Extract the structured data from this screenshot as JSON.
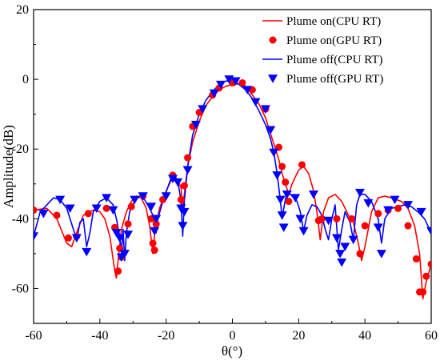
{
  "chart_data": {
    "type": "line",
    "xlabel": "θ(°)",
    "ylabel": "Amplitude(dB)",
    "xlim": [
      -60,
      60
    ],
    "ylim": [
      -70,
      20
    ],
    "x_ticks": [
      -60,
      -40,
      -20,
      0,
      20,
      40,
      60
    ],
    "y_ticks": [
      -60,
      -40,
      -20,
      0,
      20
    ],
    "x_tick_labels": [
      "-60",
      "-40",
      "-20",
      "0",
      "20",
      "40",
      "60"
    ],
    "y_tick_labels": [
      "-60",
      "-40",
      "-20",
      "0",
      "20"
    ],
    "legend_position": "top-right",
    "grid": false,
    "series": [
      {
        "name": "Plume on(CPU RT)",
        "style": "line",
        "color": "#ff0000",
        "points": [
          [
            -60,
            -37.5
          ],
          [
            -56,
            -37
          ],
          [
            -53,
            -40
          ],
          [
            -50,
            -47
          ],
          [
            -48.5,
            -48
          ],
          [
            -47,
            -44
          ],
          [
            -45,
            -39
          ],
          [
            -42,
            -37.5
          ],
          [
            -40,
            -38
          ],
          [
            -38.5,
            -40
          ],
          [
            -37,
            -45
          ],
          [
            -35.5,
            -55
          ],
          [
            -35,
            -57
          ],
          [
            -34.5,
            -52
          ],
          [
            -33.5,
            -43
          ],
          [
            -32,
            -38
          ],
          [
            -30.5,
            -35
          ],
          [
            -29,
            -33.5
          ],
          [
            -27.5,
            -34
          ],
          [
            -26,
            -37
          ],
          [
            -25,
            -42
          ],
          [
            -24,
            -50
          ],
          [
            -23.3,
            -43
          ],
          [
            -22,
            -37
          ],
          [
            -20,
            -32
          ],
          [
            -18,
            -28
          ],
          [
            -16.5,
            -29
          ],
          [
            -15.5,
            -31
          ],
          [
            -15,
            -38
          ],
          [
            -14.5,
            -33
          ],
          [
            -13.5,
            -25
          ],
          [
            -12,
            -18
          ],
          [
            -10,
            -12
          ],
          [
            -8,
            -7.5
          ],
          [
            -6,
            -5
          ],
          [
            -4,
            -3
          ],
          [
            -2,
            -2
          ],
          [
            0,
            -1.5
          ],
          [
            2,
            -1.2
          ],
          [
            4,
            -2
          ],
          [
            6,
            -4.5
          ],
          [
            8,
            -7
          ],
          [
            10,
            -11
          ],
          [
            12,
            -17
          ],
          [
            14,
            -23
          ],
          [
            15,
            -27
          ],
          [
            16,
            -30
          ],
          [
            17,
            -33
          ],
          [
            18,
            -30
          ],
          [
            20,
            -26
          ],
          [
            21.5,
            -25
          ],
          [
            23,
            -27
          ],
          [
            24.5,
            -32
          ],
          [
            25.5,
            -38
          ],
          [
            26.5,
            -46
          ],
          [
            27.5,
            -38
          ],
          [
            29,
            -34
          ],
          [
            31,
            -33
          ],
          [
            33,
            -35
          ],
          [
            35,
            -39
          ],
          [
            36.5,
            -41
          ],
          [
            38,
            -47
          ],
          [
            39,
            -52
          ],
          [
            40,
            -48
          ],
          [
            42,
            -38
          ],
          [
            44,
            -34
          ],
          [
            46,
            -33.5
          ],
          [
            48,
            -34
          ],
          [
            51,
            -35
          ],
          [
            53,
            -37
          ],
          [
            55,
            -42
          ],
          [
            56.5,
            -50
          ],
          [
            57.5,
            -63
          ],
          [
            58.5,
            -58
          ],
          [
            60,
            -53
          ]
        ]
      },
      {
        "name": "Plume on(GPU RT)",
        "style": "circle",
        "color": "#ff0000",
        "points": [
          [
            -60,
            -37.5
          ],
          [
            -53,
            -39
          ],
          [
            -49.5,
            -45.5
          ],
          [
            -47,
            -45
          ],
          [
            -43.5,
            -38.5
          ],
          [
            -38,
            -37
          ],
          [
            -35.5,
            -42.5
          ],
          [
            -34.5,
            -55
          ],
          [
            -34,
            -48.5
          ],
          [
            -33.5,
            -51
          ],
          [
            -31.5,
            -41.5
          ],
          [
            -30.5,
            -36.5
          ],
          [
            -27,
            -33.5
          ],
          [
            -24.5,
            -40
          ],
          [
            -24,
            -47
          ],
          [
            -23.5,
            -49
          ],
          [
            -23,
            -41.5
          ],
          [
            -21,
            -34.5
          ],
          [
            -18,
            -27.5
          ],
          [
            -15.5,
            -34.5
          ],
          [
            -14.5,
            -30.5
          ],
          [
            -13.5,
            -22.5
          ],
          [
            -12,
            -13.5
          ],
          [
            -10,
            -9.5
          ],
          [
            -6,
            -4.5
          ],
          [
            -4,
            -2.5
          ],
          [
            0,
            -1
          ],
          [
            3,
            -1
          ],
          [
            6,
            -3
          ],
          [
            10,
            -8.5
          ],
          [
            14,
            -19.5
          ],
          [
            15,
            -25
          ],
          [
            16,
            -29.5
          ],
          [
            17,
            -35
          ],
          [
            21,
            -24.5
          ],
          [
            26,
            -40.5
          ],
          [
            27,
            -40
          ],
          [
            31.5,
            -40
          ],
          [
            36,
            -40
          ],
          [
            38.5,
            -50
          ],
          [
            40,
            -42
          ],
          [
            44,
            -38.5
          ],
          [
            47,
            -37.5
          ],
          [
            50,
            -37
          ],
          [
            53,
            -42
          ],
          [
            55.5,
            -51.5
          ],
          [
            56.5,
            -61
          ],
          [
            57.5,
            -61
          ],
          [
            58.5,
            -56.5
          ],
          [
            60,
            -53
          ]
        ]
      },
      {
        "name": "Plume off(CPU RT)",
        "style": "line",
        "color": "#0000ff",
        "points": [
          [
            -60,
            -45
          ],
          [
            -58,
            -38
          ],
          [
            -56,
            -36
          ],
          [
            -54,
            -34
          ],
          [
            -52,
            -34.5
          ],
          [
            -50,
            -37
          ],
          [
            -48,
            -43
          ],
          [
            -47,
            -46
          ],
          [
            -46,
            -41
          ],
          [
            -45,
            -40
          ],
          [
            -44,
            -48
          ],
          [
            -43,
            -44
          ],
          [
            -42,
            -38
          ],
          [
            -40,
            -35
          ],
          [
            -38,
            -34
          ],
          [
            -36,
            -36
          ],
          [
            -35,
            -40
          ],
          [
            -34,
            -45
          ],
          [
            -33.5,
            -50
          ],
          [
            -33,
            -43
          ],
          [
            -32.5,
            -52
          ],
          [
            -32,
            -44
          ],
          [
            -31,
            -38
          ],
          [
            -29.5,
            -35
          ],
          [
            -28,
            -33.5
          ],
          [
            -26.5,
            -34.5
          ],
          [
            -25,
            -37
          ],
          [
            -23.5,
            -40
          ],
          [
            -23,
            -44
          ],
          [
            -22.5,
            -40
          ],
          [
            -21,
            -35
          ],
          [
            -19.5,
            -31
          ],
          [
            -18,
            -27
          ],
          [
            -16.5,
            -29
          ],
          [
            -15.5,
            -35
          ],
          [
            -15,
            -45
          ],
          [
            -14.5,
            -35
          ],
          [
            -13.5,
            -25
          ],
          [
            -12,
            -16
          ],
          [
            -10,
            -10
          ],
          [
            -8,
            -6
          ],
          [
            -6,
            -3.5
          ],
          [
            -4,
            -1.5
          ],
          [
            -2,
            -0.5
          ],
          [
            0,
            -0.5
          ],
          [
            2,
            -1.5
          ],
          [
            4,
            -3
          ],
          [
            6,
            -5.5
          ],
          [
            8,
            -9
          ],
          [
            10,
            -13
          ],
          [
            11.5,
            -17
          ],
          [
            12.5,
            -21
          ],
          [
            13.5,
            -27
          ],
          [
            14.5,
            -35
          ],
          [
            15,
            -40
          ],
          [
            15.5,
            -37
          ],
          [
            16.5,
            -32
          ],
          [
            18,
            -33.5
          ],
          [
            19.5,
            -35
          ],
          [
            20.5,
            -38
          ],
          [
            21.5,
            -43.5
          ],
          [
            22.5,
            -39
          ],
          [
            24,
            -36
          ],
          [
            25.5,
            -36.5
          ],
          [
            27,
            -39
          ],
          [
            28,
            -43
          ],
          [
            29,
            -46
          ],
          [
            30,
            -40
          ],
          [
            31,
            -36
          ],
          [
            32,
            -49
          ],
          [
            33,
            -43
          ],
          [
            34,
            -38
          ],
          [
            35.5,
            -41
          ],
          [
            36.5,
            -46
          ],
          [
            37.5,
            -36
          ],
          [
            38.5,
            -33
          ],
          [
            40,
            -33
          ],
          [
            42,
            -35
          ],
          [
            44,
            -40
          ],
          [
            45,
            -47
          ],
          [
            46,
            -40
          ],
          [
            48,
            -37
          ],
          [
            50,
            -36.5
          ],
          [
            52,
            -36
          ],
          [
            54,
            -36.5
          ],
          [
            56,
            -38
          ],
          [
            58,
            -40
          ],
          [
            60,
            -44
          ]
        ]
      },
      {
        "name": "Plume off(GPU RT)",
        "style": "triangle-down",
        "color": "#0000ff",
        "points": [
          [
            -60,
            -45
          ],
          [
            -57,
            -38.5
          ],
          [
            -52,
            -34.5
          ],
          [
            -49,
            -37
          ],
          [
            -47,
            -45.5
          ],
          [
            -44,
            -49.5
          ],
          [
            -41,
            -37
          ],
          [
            -38,
            -34
          ],
          [
            -36,
            -37.5
          ],
          [
            -35,
            -44
          ],
          [
            -34,
            -45.5
          ],
          [
            -33.5,
            -51
          ],
          [
            -32.5,
            -50
          ],
          [
            -31.5,
            -44.5
          ],
          [
            -29.5,
            -34.5
          ],
          [
            -27,
            -33.5
          ],
          [
            -24.5,
            -36.5
          ],
          [
            -23.5,
            -43.5
          ],
          [
            -23,
            -40
          ],
          [
            -20,
            -33.5
          ],
          [
            -18,
            -28.5
          ],
          [
            -16.5,
            -29.5
          ],
          [
            -15.5,
            -37
          ],
          [
            -15,
            -42
          ],
          [
            -14.5,
            -38
          ],
          [
            -13.5,
            -26
          ],
          [
            -11,
            -13
          ],
          [
            -9,
            -8.5
          ],
          [
            -5.5,
            -4
          ],
          [
            -3.5,
            -1.5
          ],
          [
            -1,
            0
          ],
          [
            1,
            -0.5
          ],
          [
            4.5,
            -3
          ],
          [
            7,
            -6.5
          ],
          [
            10,
            -8.5
          ],
          [
            11.5,
            -14.5
          ],
          [
            12.5,
            -21
          ],
          [
            13.5,
            -27.5
          ],
          [
            14.5,
            -34.5
          ],
          [
            15,
            -39
          ],
          [
            15.5,
            -42.5
          ],
          [
            16.5,
            -33
          ],
          [
            19,
            -34
          ],
          [
            20.5,
            -40
          ],
          [
            21.5,
            -43.5
          ],
          [
            24.5,
            -33
          ],
          [
            29,
            -40.5
          ],
          [
            31.5,
            -45.5
          ],
          [
            32.5,
            -50
          ],
          [
            33,
            -52.5
          ],
          [
            34,
            -48
          ],
          [
            36.5,
            -46
          ],
          [
            38.5,
            -32.5
          ],
          [
            41,
            -35.5
          ],
          [
            44,
            -42.5
          ],
          [
            45,
            -50
          ],
          [
            47,
            -37.5
          ],
          [
            49,
            -34.5
          ],
          [
            53,
            -36
          ],
          [
            57,
            -38
          ],
          [
            60,
            -43.5
          ]
        ]
      }
    ]
  }
}
